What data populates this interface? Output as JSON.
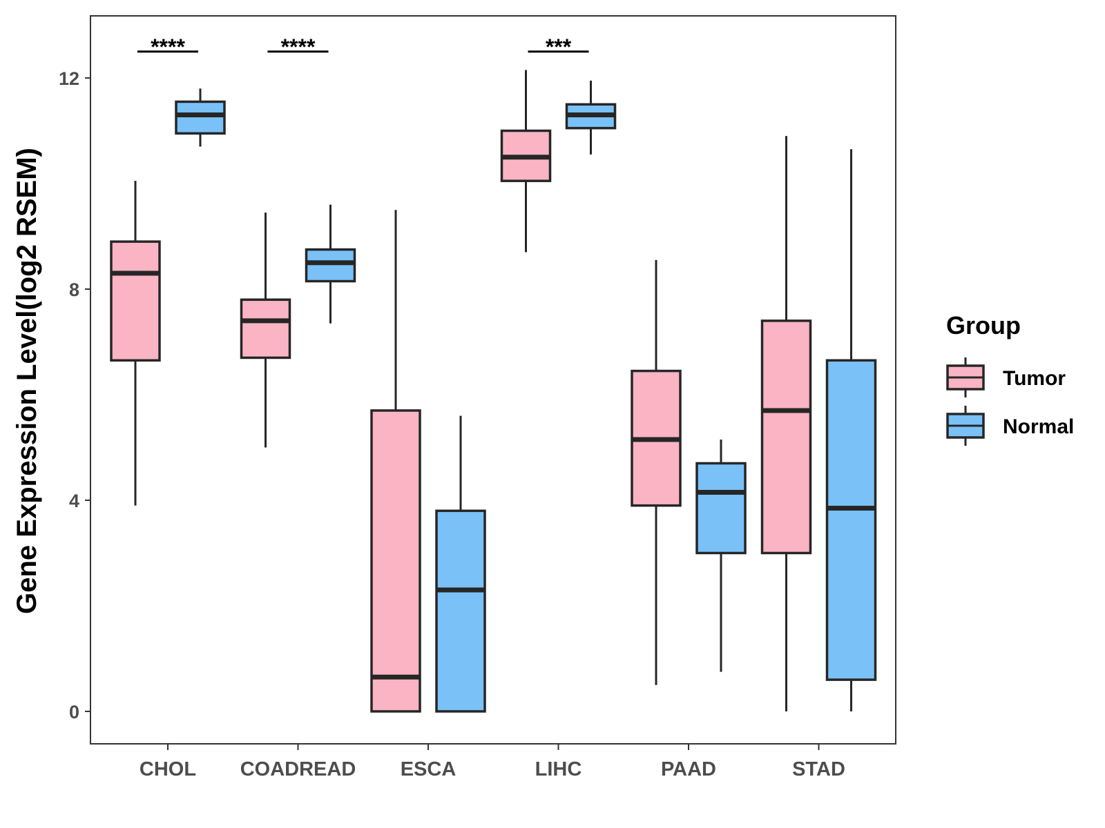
{
  "chart_data": {
    "type": "boxplot",
    "title": "",
    "xlabel": "",
    "ylabel": "Gene Expression Level(log2 RSEM)",
    "ylim": [
      -0.6,
      13.2
    ],
    "yticks": [
      0,
      4,
      8,
      12
    ],
    "ytick_labels": [
      "0",
      "4",
      "8",
      "12"
    ],
    "grid": false,
    "categories": [
      "CHOL",
      "COADREAD",
      "ESCA",
      "LIHC",
      "PAAD",
      "STAD"
    ],
    "legend": {
      "title": "Group",
      "position": "right",
      "entries": [
        "Tumor",
        "Normal"
      ]
    },
    "series": [
      {
        "name": "Tumor",
        "color": "#fbb4c4",
        "boxes": [
          {
            "whisker_low": 3.9,
            "q1": 6.65,
            "median": 8.3,
            "q3": 8.9,
            "whisker_high": 10.05
          },
          {
            "whisker_low": 5.0,
            "q1": 6.7,
            "median": 7.4,
            "q3": 7.8,
            "whisker_high": 9.45
          },
          {
            "whisker_low": 0.0,
            "q1": 0.0,
            "median": 0.65,
            "q3": 5.7,
            "whisker_high": 9.5
          },
          {
            "whisker_low": 8.7,
            "q1": 10.05,
            "median": 10.5,
            "q3": 11.0,
            "whisker_high": 12.15
          },
          {
            "whisker_low": 0.5,
            "q1": 3.9,
            "median": 5.15,
            "q3": 6.45,
            "whisker_high": 8.55
          },
          {
            "whisker_low": 0.0,
            "q1": 3.0,
            "median": 5.7,
            "q3": 7.4,
            "whisker_high": 10.9
          }
        ]
      },
      {
        "name": "Normal",
        "color": "#79c1f7",
        "boxes": [
          {
            "whisker_low": 10.7,
            "q1": 10.95,
            "median": 11.3,
            "q3": 11.55,
            "whisker_high": 11.8
          },
          {
            "whisker_low": 7.35,
            "q1": 8.15,
            "median": 8.5,
            "q3": 8.75,
            "whisker_high": 9.6
          },
          {
            "whisker_low": 0.0,
            "q1": 0.0,
            "median": 2.3,
            "q3": 3.8,
            "whisker_high": 5.6
          },
          {
            "whisker_low": 10.55,
            "q1": 11.05,
            "median": 11.3,
            "q3": 11.5,
            "whisker_high": 11.95
          },
          {
            "whisker_low": 0.75,
            "q1": 3.0,
            "median": 4.15,
            "q3": 4.7,
            "whisker_high": 5.15
          },
          {
            "whisker_low": 0.0,
            "q1": 0.6,
            "median": 3.85,
            "q3": 6.65,
            "whisker_high": 10.65
          }
        ]
      }
    ],
    "annotations": [
      {
        "category": "CHOL",
        "text": "****",
        "y": 12.5
      },
      {
        "category": "COADREAD",
        "text": "****",
        "y": 12.5
      },
      {
        "category": "LIHC",
        "text": "***",
        "y": 12.5
      }
    ]
  }
}
